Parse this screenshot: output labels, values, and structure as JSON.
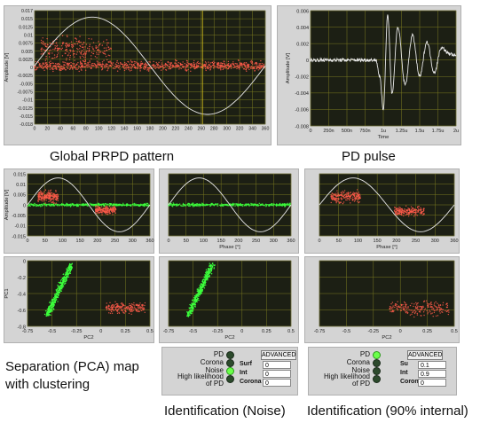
{
  "captions": {
    "global": "Global PRPD pattern",
    "pulse": "PD pulse",
    "separation": "Separation (PCA) map with clustering",
    "id_noise": "Identification (Noise)",
    "id_internal": "Identification (90% internal)"
  },
  "axes": {
    "amplitude": "Amplitude [V]",
    "phase": "Phase [°]",
    "time": "Time",
    "pc1": "PC1",
    "pc2": "PC2"
  },
  "colors": {
    "plot_bg": "#1c1f14",
    "grid": "#7a7a20",
    "red": "#ff5a4a",
    "green": "#3cff3c",
    "sine": "#e8e8e8",
    "cursor": "#d6c21c"
  },
  "chart_data": [
    {
      "id": "global_prpd",
      "type": "scatter",
      "xlabel": "",
      "ylabel": "Amplitude [V]",
      "xlim": [
        0,
        360
      ],
      "ylim": [
        -0.018,
        0.017
      ],
      "x_ticks": [
        "0",
        "20",
        "40",
        "60",
        "80",
        "100",
        "120",
        "140",
        "160",
        "180",
        "200",
        "220",
        "240",
        "260",
        "280",
        "300",
        "320",
        "340",
        "360"
      ],
      "y_ticks": [
        "0.017",
        "0.015",
        "0.0125",
        "0.01",
        "0.0075",
        "0.005",
        "0.0025",
        "0",
        "-0.0025",
        "-0.005",
        "-0.0075",
        "-0.01",
        "-0.0125",
        "-0.015",
        "-0.018"
      ],
      "series": [
        {
          "color": "red",
          "clusters": [
            {
              "x": [
                0,
                360
              ],
              "y": [
                -0.002,
                0.002
              ],
              "density": "high"
            },
            {
              "x": [
                10,
                120
              ],
              "y": [
                0,
                0.01
              ],
              "density": "medium"
            }
          ]
        }
      ],
      "reference_sine": {
        "amplitude": 0.015
      }
    },
    {
      "id": "pd_pulse",
      "type": "line",
      "xlabel": "Time",
      "ylabel": "Amplitude [V]",
      "xlim": [
        0,
        2e-06
      ],
      "ylim": [
        -0.008,
        0.006
      ],
      "x_ticks": [
        "0",
        "250n",
        "500n",
        "750n",
        "1u",
        "1.25u",
        "1.5u",
        "1.75u",
        "2u"
      ],
      "y_ticks": [
        "0.006",
        "0.004",
        "0.002",
        "0",
        "-0.002",
        "-0.004",
        "-0.006",
        "-0.008"
      ],
      "x": [
        0,
        5e-07,
        9e-07,
        9.5e-07,
        1e-06,
        1.06e-06,
        1.12e-06,
        1.2e-06,
        1.3e-06,
        1.4e-06,
        1.5e-06,
        1.6e-06,
        1.7e-06,
        1.8e-06,
        1.9e-06,
        2e-06
      ],
      "y": [
        0,
        0,
        0,
        -0.002,
        -0.006,
        0.0055,
        -0.004,
        0.004,
        -0.003,
        0.003,
        -0.002,
        0.0022,
        -0.0015,
        0.0015,
        0.0008,
        0.0005
      ]
    },
    {
      "id": "prpd_clustered",
      "type": "scatter",
      "ylabel": "Amplitude [V]",
      "xlim": [
        0,
        360
      ],
      "ylim": [
        -0.015,
        0.015
      ],
      "x_ticks": [
        "0",
        "50",
        "100",
        "150",
        "200",
        "250",
        "300",
        "360"
      ],
      "y_ticks": [
        "0.015",
        "0.01",
        "0.005",
        "0",
        "-0.005",
        "-0.01",
        "-0.015"
      ],
      "series": [
        {
          "color": "green",
          "clusters": [
            {
              "x": [
                0,
                360
              ],
              "y": [
                -0.001,
                0.001
              ]
            }
          ]
        },
        {
          "color": "red",
          "clusters": [
            {
              "x": [
                30,
                90
              ],
              "y": [
                0,
                0.008
              ]
            },
            {
              "x": [
                200,
                260
              ],
              "y": [
                -0.005,
                0
              ]
            }
          ]
        }
      ]
    },
    {
      "id": "prpd_noise",
      "type": "scatter",
      "xlabel": "Phase [°]",
      "xlim": [
        0,
        360
      ],
      "ylim": [
        -0.015,
        0.015
      ],
      "x_ticks": [
        "0",
        "50",
        "100",
        "150",
        "200",
        "250",
        "300",
        "360"
      ],
      "series": [
        {
          "color": "green",
          "clusters": [
            {
              "x": [
                0,
                360
              ],
              "y": [
                -0.001,
                0.001
              ]
            }
          ]
        }
      ]
    },
    {
      "id": "prpd_internal",
      "type": "scatter",
      "xlabel": "Phase [°]",
      "xlim": [
        0,
        360
      ],
      "ylim": [
        -0.015,
        0.015
      ],
      "x_ticks": [
        "0",
        "50",
        "100",
        "150",
        "200",
        "250",
        "300",
        "360"
      ],
      "series": [
        {
          "color": "red",
          "clusters": [
            {
              "x": [
                30,
                110
              ],
              "y": [
                0,
                0.008
              ]
            },
            {
              "x": [
                200,
                280
              ],
              "y": [
                -0.006,
                0
              ]
            }
          ]
        }
      ]
    },
    {
      "id": "pca_clustered",
      "type": "scatter",
      "xlabel": "PC2",
      "ylabel": "PC1",
      "xlim": [
        -0.75,
        0.5
      ],
      "ylim": [
        -0.9,
        0
      ],
      "x_ticks": [
        "-0.75",
        "-0.5",
        "-0.25",
        "0",
        "0.25",
        "0.5"
      ],
      "y_ticks": [
        "0",
        "-0.2",
        "-0.4",
        "-0.6",
        "-0.8"
      ],
      "series": [
        {
          "color": "green",
          "clusters": [
            {
              "x": [
                -0.55,
                -0.3
              ],
              "y": [
                -0.75,
                -0.05
              ]
            }
          ]
        },
        {
          "color": "red",
          "clusters": [
            {
              "x": [
                0.05,
                0.45
              ],
              "y": [
                -0.75,
                -0.55
              ]
            }
          ]
        }
      ]
    },
    {
      "id": "pca_noise",
      "type": "scatter",
      "xlabel": "PC2",
      "xlim": [
        -0.75,
        0.5
      ],
      "ylim": [
        -0.9,
        0
      ],
      "x_ticks": [
        "-0.75",
        "-0.5",
        "-0.25",
        "0",
        "0.25",
        "0.5"
      ],
      "series": [
        {
          "color": "green",
          "clusters": [
            {
              "x": [
                -0.55,
                -0.3
              ],
              "y": [
                -0.75,
                -0.05
              ]
            }
          ]
        }
      ]
    },
    {
      "id": "pca_internal",
      "type": "scatter",
      "xlabel": "PC2",
      "xlim": [
        -0.75,
        0.5
      ],
      "ylim": [
        -0.9,
        0
      ],
      "x_ticks": [
        "-0.75",
        "-0.5",
        "-0.25",
        "0",
        "0.25",
        "0.5"
      ],
      "series": [
        {
          "color": "red",
          "clusters": [
            {
              "x": [
                -0.1,
                0.45
              ],
              "y": [
                -0.8,
                -0.5
              ]
            }
          ]
        }
      ]
    }
  ],
  "identification": [
    {
      "id": "noise",
      "leds": [
        {
          "label": "PD",
          "on": false
        },
        {
          "label": "Corona",
          "on": false
        },
        {
          "label": "Noise",
          "on": true
        },
        {
          "label": "High likelihood of PD",
          "on": false
        }
      ],
      "advanced": "ADVANCED",
      "results": [
        {
          "label": "Surf",
          "value": "0"
        },
        {
          "label": "Int",
          "value": "0"
        },
        {
          "label": "Corona",
          "value": "0"
        }
      ]
    },
    {
      "id": "internal",
      "leds": [
        {
          "label": "PD",
          "on": true
        },
        {
          "label": "Corona",
          "on": false
        },
        {
          "label": "Noise",
          "on": false
        },
        {
          "label": "High likelihood of PD",
          "on": false
        }
      ],
      "advanced": "ADVANCED",
      "results": [
        {
          "label": "Su",
          "value": "0.1"
        },
        {
          "label": "Int",
          "value": "0.9"
        },
        {
          "label": "Corona",
          "value": "0"
        }
      ]
    }
  ]
}
